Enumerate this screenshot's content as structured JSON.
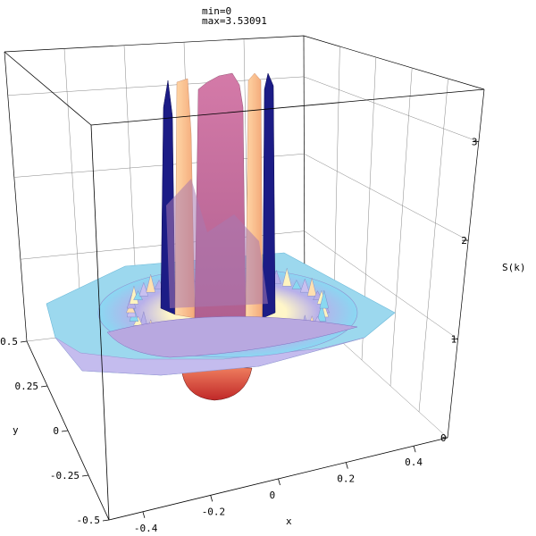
{
  "header": {
    "min_label": "min=0",
    "max_label": "max=3.53091"
  },
  "chart_data": {
    "type": "surface3d",
    "title": "",
    "xlabel": "x",
    "ylabel": "y",
    "zlabel": "S(k)",
    "x_ticks": [
      "-0.4",
      "-0.2",
      "0",
      "0.2",
      "0.4"
    ],
    "y_ticks": [
      "-0.5",
      "-0.25",
      "0",
      "0.25",
      "0.5"
    ],
    "z_ticks": [
      "0",
      "1",
      "2",
      "3"
    ],
    "xlim": [
      -0.5,
      0.5
    ],
    "ylim": [
      -0.5,
      0.5
    ],
    "zlim": [
      0,
      3.53091
    ],
    "min": 0,
    "max": 3.53091,
    "grid": true,
    "colors": {
      "peak_pink": "#c86a9a",
      "peak_orange": "#ffc890",
      "peak_navy": "#1a1a80",
      "ring_cyan": "#8ad8f0",
      "ring_lavender": "#b8b0e8",
      "ring_yellow": "#fff4c0",
      "dip_red": "#d84040"
    }
  }
}
